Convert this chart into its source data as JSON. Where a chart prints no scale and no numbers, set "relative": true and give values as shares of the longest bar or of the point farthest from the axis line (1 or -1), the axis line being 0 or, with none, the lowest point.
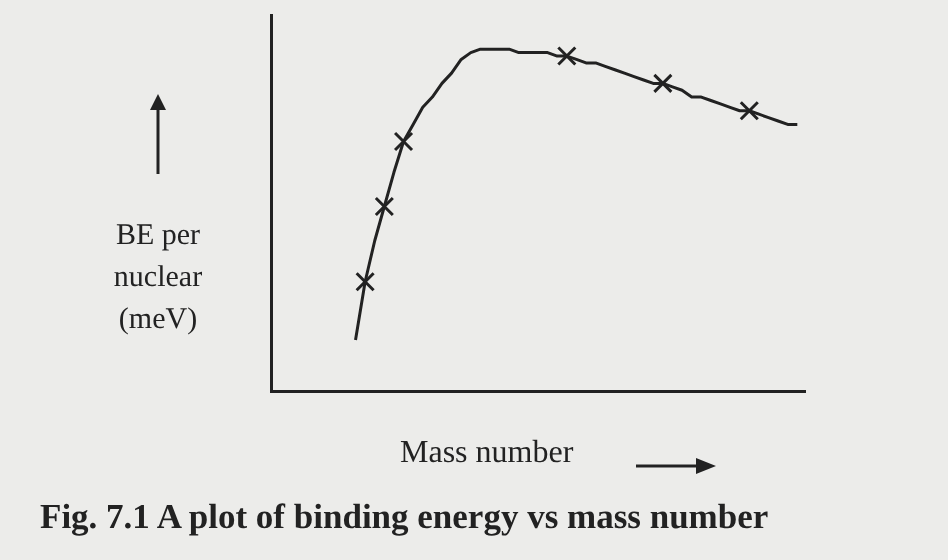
{
  "chart_data": {
    "type": "line",
    "relative": true,
    "ylabel": "BE per nuclear (meV)",
    "xlabel": "Mass number",
    "annotations": [
      "Fig. 7.1 A plot of binding energy vs mass number"
    ],
    "grid": false,
    "legend": false,
    "categories": [
      null,
      null,
      null,
      null,
      null,
      null,
      null,
      null,
      null,
      null,
      null,
      null,
      null,
      null,
      null,
      null,
      null,
      null,
      null,
      null,
      null,
      null,
      null,
      null,
      null,
      null,
      null,
      null,
      null,
      null,
      null,
      null,
      null,
      null,
      null,
      null,
      null,
      null,
      null,
      null,
      null,
      null,
      null,
      null,
      null,
      null,
      null
    ],
    "series": [
      {
        "type": "line",
        "color": "#222222",
        "marker": "none",
        "line_style": "solid",
        "values": [
          0.15,
          0.32,
          0.44,
          0.54,
          0.64,
          0.73,
          0.78,
          0.83,
          0.86,
          0.9,
          0.93,
          0.97,
          0.99,
          1,
          1,
          1,
          1,
          0.99,
          0.99,
          0.99,
          0.99,
          0.98,
          0.98,
          0.97,
          0.96,
          0.96,
          0.95,
          0.94,
          0.93,
          0.92,
          0.91,
          0.9,
          0.9,
          0.89,
          0.88,
          0.86,
          0.86,
          0.85,
          0.84,
          0.83,
          0.82,
          0.82,
          0.81,
          0.8,
          0.79,
          0.78,
          0.78
        ]
      },
      {
        "type": "line",
        "color": "#222222",
        "marker": "cross",
        "line_style": "none",
        "values": [
          null,
          0.32,
          null,
          0.54,
          null,
          0.73,
          null,
          null,
          null,
          null,
          null,
          null,
          null,
          null,
          null,
          null,
          null,
          null,
          null,
          null,
          null,
          null,
          0.98,
          null,
          null,
          null,
          null,
          null,
          null,
          null,
          null,
          null,
          0.9,
          null,
          null,
          null,
          null,
          null,
          null,
          null,
          null,
          0.82,
          null,
          null,
          null,
          null,
          null
        ]
      }
    ]
  }
}
